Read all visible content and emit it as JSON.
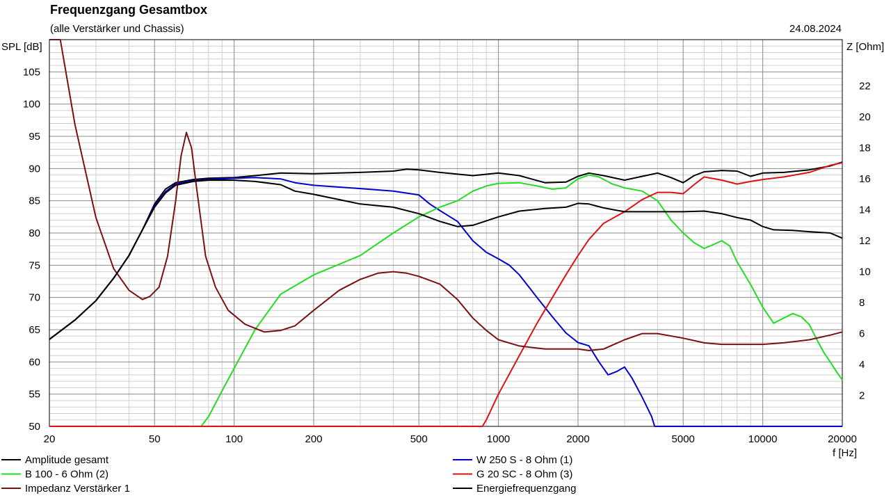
{
  "chart_data": {
    "type": "line",
    "title": "Frequenzgang Gesamtbox",
    "subtitle": "(alle Verstärker und Chassis)",
    "date": "24.08.2024",
    "xlabel": "f [Hz]",
    "ylabel_left": "SPL [dB]",
    "ylabel_right": "Z [Ohm]",
    "x_scale": "log",
    "xlim": [
      20,
      20000
    ],
    "ylim_left": [
      50,
      110
    ],
    "ylim_right": [
      0,
      25
    ],
    "grid": true,
    "legend_position": "bottom",
    "x_ticks": [
      "20",
      "50",
      "100",
      "200",
      "500",
      "1000",
      "2000",
      "5000",
      "10000",
      "20000"
    ],
    "y_ticks_left": [
      "50",
      "55",
      "60",
      "65",
      "70",
      "75",
      "80",
      "85",
      "90",
      "95",
      "100",
      "105"
    ],
    "y_ticks_right": [
      "2",
      "4",
      "6",
      "8",
      "10",
      "12",
      "14",
      "16",
      "18",
      "20",
      "22"
    ],
    "series": [
      {
        "name": "Amplitude gesamt",
        "color": "#000000",
        "axis": "left",
        "points": [
          [
            20,
            63.5
          ],
          [
            25,
            66.5
          ],
          [
            30,
            69.5
          ],
          [
            35,
            73
          ],
          [
            40,
            76.5
          ],
          [
            45,
            80.5
          ],
          [
            50,
            84.5
          ],
          [
            55,
            86.8
          ],
          [
            60,
            87.8
          ],
          [
            70,
            88.3
          ],
          [
            80,
            88.5
          ],
          [
            100,
            88.6
          ],
          [
            120,
            88.9
          ],
          [
            150,
            89.3
          ],
          [
            200,
            89.2
          ],
          [
            300,
            89.4
          ],
          [
            400,
            89.6
          ],
          [
            450,
            89.9
          ],
          [
            500,
            89.8
          ],
          [
            600,
            89.4
          ],
          [
            800,
            88.9
          ],
          [
            1000,
            89.3
          ],
          [
            1200,
            88.9
          ],
          [
            1500,
            87.8
          ],
          [
            1800,
            87.9
          ],
          [
            2000,
            88.8
          ],
          [
            2200,
            89.3
          ],
          [
            2500,
            88.9
          ],
          [
            3000,
            88.2
          ],
          [
            3500,
            88.8
          ],
          [
            4000,
            89.3
          ],
          [
            4500,
            88.6
          ],
          [
            5000,
            87.8
          ],
          [
            5500,
            88.9
          ],
          [
            6000,
            89.5
          ],
          [
            7000,
            89.7
          ],
          [
            8000,
            89.6
          ],
          [
            9000,
            88.8
          ],
          [
            10000,
            89.3
          ],
          [
            12000,
            89.4
          ],
          [
            15000,
            89.8
          ],
          [
            18000,
            90.4
          ],
          [
            20000,
            91.0
          ]
        ]
      },
      {
        "name": "W 250 S - 8 Ohm  (1)",
        "color": "#0000cc",
        "axis": "left",
        "points": [
          [
            20,
            63.5
          ],
          [
            25,
            66.5
          ],
          [
            30,
            69.5
          ],
          [
            35,
            73
          ],
          [
            40,
            76.5
          ],
          [
            45,
            80.5
          ],
          [
            50,
            84.2
          ],
          [
            55,
            86.4
          ],
          [
            60,
            87.6
          ],
          [
            70,
            88.1
          ],
          [
            80,
            88.3
          ],
          [
            100,
            88.5
          ],
          [
            120,
            88.6
          ],
          [
            150,
            88.4
          ],
          [
            170,
            87.8
          ],
          [
            200,
            87.4
          ],
          [
            300,
            86.9
          ],
          [
            400,
            86.5
          ],
          [
            500,
            85.9
          ],
          [
            550,
            84.5
          ],
          [
            600,
            83.5
          ],
          [
            700,
            81.8
          ],
          [
            800,
            78.8
          ],
          [
            900,
            77.0
          ],
          [
            1000,
            76.0
          ],
          [
            1100,
            75.0
          ],
          [
            1200,
            73.5
          ],
          [
            1400,
            70.0
          ],
          [
            1600,
            67.0
          ],
          [
            1800,
            64.5
          ],
          [
            2000,
            63.0
          ],
          [
            2200,
            62.5
          ],
          [
            2400,
            60.0
          ],
          [
            2600,
            58.0
          ],
          [
            2800,
            58.5
          ],
          [
            3000,
            59.2
          ],
          [
            3200,
            57.5
          ],
          [
            3500,
            54.5
          ],
          [
            3800,
            51.5
          ],
          [
            3900,
            50.0
          ],
          [
            20000,
            50.0
          ]
        ]
      },
      {
        "name": "B 100 - 6 Ohm (2)",
        "color": "#22dd22",
        "axis": "left",
        "points": [
          [
            20,
            50
          ],
          [
            75,
            50
          ],
          [
            80,
            51.5
          ],
          [
            90,
            55.5
          ],
          [
            100,
            59.0
          ],
          [
            120,
            65.0
          ],
          [
            150,
            70.5
          ],
          [
            200,
            73.5
          ],
          [
            300,
            76.5
          ],
          [
            400,
            80.0
          ],
          [
            500,
            82.5
          ],
          [
            600,
            84.0
          ],
          [
            700,
            85.0
          ],
          [
            800,
            86.5
          ],
          [
            900,
            87.3
          ],
          [
            1000,
            87.7
          ],
          [
            1200,
            87.8
          ],
          [
            1400,
            87.3
          ],
          [
            1600,
            86.8
          ],
          [
            1800,
            87.0
          ],
          [
            2000,
            88.4
          ],
          [
            2200,
            89.0
          ],
          [
            2400,
            88.7
          ],
          [
            2700,
            87.6
          ],
          [
            3000,
            87.0
          ],
          [
            3500,
            86.5
          ],
          [
            4000,
            85.0
          ],
          [
            4500,
            82.0
          ],
          [
            5000,
            80.0
          ],
          [
            5500,
            78.5
          ],
          [
            6000,
            77.6
          ],
          [
            6500,
            78.2
          ],
          [
            7000,
            78.8
          ],
          [
            7500,
            78.0
          ],
          [
            8000,
            75.5
          ],
          [
            9000,
            72.0
          ],
          [
            10000,
            68.5
          ],
          [
            11000,
            66.0
          ],
          [
            12000,
            66.8
          ],
          [
            13000,
            67.5
          ],
          [
            14000,
            67.0
          ],
          [
            15000,
            65.8
          ],
          [
            16000,
            63.5
          ],
          [
            17000,
            61.5
          ],
          [
            18000,
            60.0
          ],
          [
            19000,
            58.5
          ],
          [
            20000,
            57.2
          ]
        ]
      },
      {
        "name": "G 20 SC - 8 Ohm (3)",
        "color": "#dd1111",
        "axis": "left",
        "points": [
          [
            20,
            50
          ],
          [
            870,
            50
          ],
          [
            900,
            51.0
          ],
          [
            1000,
            55.0
          ],
          [
            1200,
            61.0
          ],
          [
            1400,
            66.0
          ],
          [
            1600,
            70.0
          ],
          [
            1800,
            73.5
          ],
          [
            2000,
            76.5
          ],
          [
            2200,
            79.0
          ],
          [
            2500,
            81.5
          ],
          [
            3000,
            83.3
          ],
          [
            3500,
            85.2
          ],
          [
            4000,
            86.3
          ],
          [
            4500,
            86.3
          ],
          [
            5000,
            86.1
          ],
          [
            5500,
            87.5
          ],
          [
            6000,
            88.7
          ],
          [
            7000,
            88.2
          ],
          [
            8000,
            87.6
          ],
          [
            9000,
            88.0
          ],
          [
            10000,
            88.3
          ],
          [
            12000,
            88.7
          ],
          [
            15000,
            89.4
          ],
          [
            18000,
            90.5
          ],
          [
            20000,
            90.9
          ]
        ]
      },
      {
        "name": "Impedanz Verstärker 1",
        "color": "#7a1010",
        "axis": "right",
        "points": [
          [
            20,
            25
          ],
          [
            22,
            25
          ],
          [
            25,
            19.5
          ],
          [
            30,
            13.5
          ],
          [
            35,
            10.2
          ],
          [
            40,
            8.8
          ],
          [
            45,
            8.2
          ],
          [
            48,
            8.4
          ],
          [
            52,
            9.0
          ],
          [
            56,
            11.0
          ],
          [
            60,
            14.5
          ],
          [
            63,
            17.5
          ],
          [
            66,
            19.0
          ],
          [
            69,
            18.0
          ],
          [
            72,
            15.5
          ],
          [
            78,
            11.0
          ],
          [
            85,
            9.0
          ],
          [
            95,
            7.5
          ],
          [
            110,
            6.6
          ],
          [
            130,
            6.1
          ],
          [
            150,
            6.2
          ],
          [
            170,
            6.5
          ],
          [
            200,
            7.5
          ],
          [
            250,
            8.8
          ],
          [
            300,
            9.5
          ],
          [
            350,
            9.9
          ],
          [
            400,
            10.0
          ],
          [
            450,
            9.9
          ],
          [
            500,
            9.7
          ],
          [
            600,
            9.2
          ],
          [
            700,
            8.2
          ],
          [
            800,
            7.0
          ],
          [
            900,
            6.2
          ],
          [
            1000,
            5.6
          ],
          [
            1200,
            5.2
          ],
          [
            1500,
            5.0
          ],
          [
            1800,
            5.0
          ],
          [
            2000,
            5.0
          ],
          [
            2200,
            4.9
          ],
          [
            2500,
            5.0
          ],
          [
            3000,
            5.6
          ],
          [
            3500,
            6.0
          ],
          [
            4000,
            6.0
          ],
          [
            5000,
            5.7
          ],
          [
            6000,
            5.4
          ],
          [
            7000,
            5.3
          ],
          [
            8000,
            5.3
          ],
          [
            10000,
            5.3
          ],
          [
            12000,
            5.4
          ],
          [
            15000,
            5.6
          ],
          [
            18000,
            5.9
          ],
          [
            20000,
            6.1
          ]
        ]
      },
      {
        "name": "Energiefrequenzgang",
        "color": "#000000",
        "axis": "left",
        "points": [
          [
            20,
            63.5
          ],
          [
            25,
            66.5
          ],
          [
            30,
            69.5
          ],
          [
            35,
            73
          ],
          [
            40,
            76.5
          ],
          [
            45,
            80.5
          ],
          [
            50,
            84.0
          ],
          [
            55,
            86.2
          ],
          [
            60,
            87.4
          ],
          [
            70,
            88.0
          ],
          [
            80,
            88.2
          ],
          [
            100,
            88.2
          ],
          [
            120,
            88.0
          ],
          [
            150,
            87.5
          ],
          [
            170,
            86.5
          ],
          [
            200,
            86.0
          ],
          [
            300,
            84.5
          ],
          [
            400,
            84.0
          ],
          [
            500,
            83.0
          ],
          [
            600,
            81.8
          ],
          [
            700,
            81.0
          ],
          [
            800,
            81.2
          ],
          [
            1000,
            82.5
          ],
          [
            1200,
            83.4
          ],
          [
            1500,
            83.8
          ],
          [
            1800,
            84.0
          ],
          [
            2000,
            84.6
          ],
          [
            2200,
            84.5
          ],
          [
            2500,
            83.9
          ],
          [
            3000,
            83.3
          ],
          [
            4000,
            83.3
          ],
          [
            5000,
            83.3
          ],
          [
            6000,
            83.4
          ],
          [
            7000,
            83.0
          ],
          [
            8000,
            82.4
          ],
          [
            9000,
            82.0
          ],
          [
            10000,
            81.0
          ],
          [
            11000,
            80.5
          ],
          [
            13000,
            80.4
          ],
          [
            15000,
            80.2
          ],
          [
            18000,
            80.0
          ],
          [
            20000,
            79.2
          ]
        ]
      }
    ]
  }
}
